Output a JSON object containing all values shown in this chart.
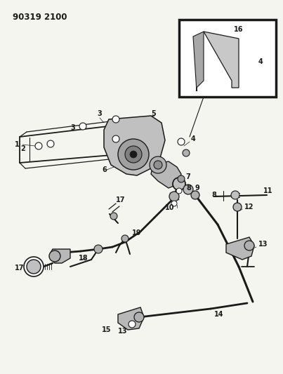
{
  "title": "90319 2100",
  "bg_color": "#f5f5f0",
  "line_color": "#1a1a1a",
  "gray_fill": "#b8b8b8",
  "light_gray": "#d0d0d0",
  "fig_w": 4.03,
  "fig_h": 5.33,
  "dpi": 100
}
